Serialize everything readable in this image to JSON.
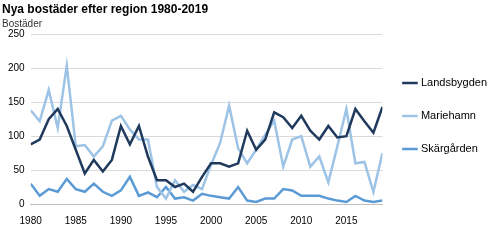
{
  "chart_data": {
    "type": "line",
    "title": "Nya bostäder efter region 1980-2019",
    "ylabel": "Bostäder",
    "x": [
      1980,
      1981,
      1982,
      1983,
      1984,
      1985,
      1986,
      1987,
      1988,
      1989,
      1990,
      1991,
      1992,
      1993,
      1994,
      1995,
      1996,
      1997,
      1998,
      1999,
      2000,
      2001,
      2002,
      2003,
      2004,
      2005,
      2006,
      2007,
      2008,
      2009,
      2010,
      2011,
      2012,
      2013,
      2014,
      2015,
      2016,
      2017,
      2018,
      2019
    ],
    "series": [
      {
        "name": "Landsbygden",
        "color": "#1f3a5c",
        "values": [
          88,
          95,
          125,
          140,
          115,
          80,
          45,
          65,
          48,
          65,
          115,
          88,
          115,
          70,
          35,
          35,
          25,
          30,
          18,
          40,
          60,
          60,
          55,
          60,
          108,
          80,
          95,
          135,
          128,
          112,
          130,
          108,
          95,
          115,
          98,
          100,
          140,
          122,
          105,
          143
        ]
      },
      {
        "name": "Mariehamn",
        "color": "#9dc3e6",
        "values": [
          138,
          122,
          168,
          112,
          204,
          85,
          87,
          70,
          85,
          123,
          130,
          110,
          95,
          95,
          25,
          8,
          35,
          18,
          28,
          22,
          58,
          90,
          145,
          82,
          60,
          80,
          102,
          123,
          55,
          95,
          100,
          55,
          70,
          32,
          85,
          140,
          60,
          62,
          18,
          75
        ]
      },
      {
        "name": "Skärgården",
        "color": "#5b9bd5",
        "values": [
          30,
          12,
          22,
          18,
          37,
          22,
          18,
          30,
          18,
          12,
          20,
          40,
          12,
          17,
          10,
          25,
          8,
          10,
          5,
          15,
          12,
          10,
          8,
          25,
          5,
          3,
          8,
          8,
          22,
          20,
          12,
          12,
          12,
          8,
          5,
          3,
          12,
          5,
          3,
          5
        ]
      }
    ],
    "xlim": [
      1980,
      2019
    ],
    "xticks": [
      1980,
      1985,
      1990,
      1995,
      2000,
      2005,
      2010,
      2015
    ],
    "ylim": [
      0,
      250
    ],
    "yticks": [
      0,
      50,
      100,
      150,
      200,
      250
    ],
    "grid": "y",
    "legend": "right"
  }
}
